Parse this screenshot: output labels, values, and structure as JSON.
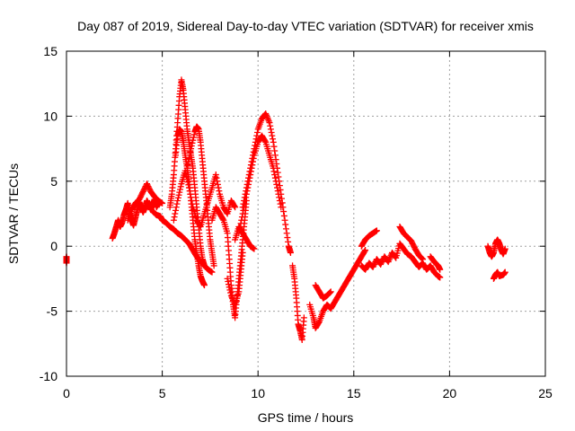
{
  "chart_data": {
    "type": "scatter",
    "title": "Day 087 of 2019, Sidereal Day-to-day VTEC variation (SDTVAR) for receiver xmis",
    "xlabel": "GPS time / hours",
    "ylabel": "SDTVAR / TECUs",
    "xlim": [
      0,
      25
    ],
    "ylim": [
      -10,
      15
    ],
    "xticks": [
      0,
      5,
      10,
      15,
      20,
      25
    ],
    "yticks": [
      -10,
      -5,
      0,
      5,
      10,
      15
    ],
    "xtick_labels": [
      "0",
      "5",
      "10",
      "15",
      "20",
      "25"
    ],
    "ytick_labels": [
      "-10",
      "-5",
      "0",
      "5",
      "10",
      "15"
    ],
    "grid": true,
    "marker": "+",
    "color": "#ff0000",
    "series": [
      {
        "name": "start",
        "points": [
          [
            0.0,
            -0.8
          ],
          [
            0.0,
            -1.0
          ],
          [
            0.0,
            -1.3
          ]
        ]
      },
      {
        "name": "s1",
        "points": [
          [
            2.4,
            0.6
          ],
          [
            2.5,
            1.0
          ],
          [
            2.6,
            1.5
          ],
          [
            2.7,
            2.0
          ],
          [
            2.8,
            1.5
          ],
          [
            2.9,
            1.8
          ],
          [
            3.0,
            2.4
          ],
          [
            3.1,
            2.8
          ],
          [
            3.2,
            3.3
          ],
          [
            3.3,
            2.5
          ],
          [
            3.4,
            2.0
          ],
          [
            3.5,
            1.6
          ],
          [
            3.6,
            2.2
          ],
          [
            3.7,
            2.8
          ],
          [
            3.8,
            3.4
          ],
          [
            3.9,
            3.0
          ],
          [
            4.0,
            2.6
          ],
          [
            4.1,
            3.0
          ],
          [
            4.2,
            3.5
          ],
          [
            4.3,
            3.2
          ],
          [
            4.4,
            2.8
          ],
          [
            4.5,
            3.2
          ],
          [
            4.6,
            3.6
          ],
          [
            4.7,
            3.0
          ],
          [
            4.8,
            3.3
          ]
        ]
      },
      {
        "name": "s1b",
        "points": [
          [
            3.2,
            2.0
          ],
          [
            3.4,
            2.8
          ],
          [
            3.6,
            3.3
          ],
          [
            3.8,
            3.6
          ],
          [
            4.0,
            4.2
          ],
          [
            4.2,
            4.8
          ],
          [
            4.4,
            4.2
          ],
          [
            4.6,
            3.8
          ],
          [
            4.8,
            3.5
          ],
          [
            5.0,
            3.3
          ]
        ]
      },
      {
        "name": "s2",
        "points": [
          [
            4.5,
            2.7
          ],
          [
            4.7,
            2.4
          ],
          [
            4.9,
            2.3
          ],
          [
            5.0,
            2.0
          ],
          [
            5.2,
            1.8
          ],
          [
            5.4,
            1.5
          ],
          [
            5.6,
            1.3
          ],
          [
            5.8,
            1.0
          ],
          [
            6.0,
            0.8
          ],
          [
            6.2,
            0.5
          ],
          [
            6.4,
            0.2
          ],
          [
            6.6,
            -0.3
          ],
          [
            6.8,
            -0.8
          ],
          [
            7.0,
            -1.2
          ],
          [
            7.2,
            -1.5
          ],
          [
            7.4,
            -1.8
          ],
          [
            7.6,
            -2.0
          ]
        ]
      },
      {
        "name": "s3",
        "points": [
          [
            5.4,
            3.0
          ],
          [
            5.5,
            4.0
          ],
          [
            5.6,
            5.5
          ],
          [
            5.7,
            7.5
          ],
          [
            5.8,
            9.5
          ],
          [
            5.9,
            11.5
          ],
          [
            6.0,
            12.8
          ],
          [
            6.1,
            12.0
          ],
          [
            6.2,
            10.5
          ],
          [
            6.3,
            9.0
          ],
          [
            6.4,
            8.0
          ],
          [
            6.5,
            7.0
          ],
          [
            6.6,
            6.0
          ],
          [
            6.7,
            4.5
          ],
          [
            6.8,
            3.0
          ],
          [
            6.9,
            1.5
          ],
          [
            7.0,
            0.0
          ],
          [
            7.1,
            -1.0
          ],
          [
            7.2,
            -1.5
          ]
        ]
      },
      {
        "name": "s3b",
        "points": [
          [
            5.7,
            7.0
          ],
          [
            5.8,
            8.5
          ],
          [
            5.9,
            9.0
          ],
          [
            6.0,
            8.8
          ],
          [
            6.1,
            8.0
          ],
          [
            6.2,
            7.0
          ],
          [
            6.3,
            6.0
          ],
          [
            6.4,
            5.0
          ],
          [
            6.5,
            3.5
          ],
          [
            6.6,
            2.0
          ],
          [
            6.7,
            0.5
          ],
          [
            6.8,
            -0.5
          ],
          [
            6.9,
            -1.5
          ],
          [
            7.0,
            -2.3
          ],
          [
            7.1,
            -2.7
          ],
          [
            7.2,
            -3.0
          ]
        ]
      },
      {
        "name": "s4",
        "points": [
          [
            6.3,
            6.0
          ],
          [
            6.5,
            7.5
          ],
          [
            6.7,
            8.8
          ],
          [
            6.8,
            9.2
          ],
          [
            6.9,
            9.0
          ],
          [
            7.0,
            8.0
          ],
          [
            7.1,
            6.5
          ],
          [
            7.2,
            5.0
          ],
          [
            7.3,
            3.5
          ],
          [
            7.4,
            2.0
          ],
          [
            7.5,
            0.5
          ],
          [
            7.6,
            -0.5
          ],
          [
            7.7,
            -1.5
          ]
        ]
      },
      {
        "name": "s5",
        "points": [
          [
            5.6,
            2.0
          ],
          [
            5.8,
            3.5
          ],
          [
            6.0,
            4.8
          ],
          [
            6.2,
            5.8
          ],
          [
            6.4,
            4.5
          ],
          [
            6.6,
            3.0
          ],
          [
            6.8,
            2.0
          ],
          [
            7.0,
            1.5
          ],
          [
            7.2,
            2.5
          ],
          [
            7.4,
            3.5
          ],
          [
            7.6,
            4.5
          ],
          [
            7.8,
            5.5
          ],
          [
            8.0,
            4.0
          ],
          [
            8.2,
            3.0
          ],
          [
            8.4,
            2.5
          ],
          [
            8.6,
            3.5
          ],
          [
            8.8,
            3.0
          ]
        ]
      },
      {
        "name": "s6",
        "points": [
          [
            7.6,
            2.0
          ],
          [
            7.8,
            3.0
          ],
          [
            8.0,
            2.5
          ],
          [
            8.2,
            2.0
          ],
          [
            8.4,
            1.0
          ],
          [
            8.5,
            -1.0
          ],
          [
            8.6,
            -3.0
          ],
          [
            8.7,
            -4.5
          ],
          [
            8.8,
            -5.5
          ],
          [
            8.9,
            -4.0
          ],
          [
            9.0,
            -2.5
          ],
          [
            9.1,
            -1.0
          ],
          [
            9.2,
            0.5
          ],
          [
            9.3,
            2.0
          ],
          [
            9.4,
            3.5
          ]
        ]
      },
      {
        "name": "s6b",
        "points": [
          [
            8.4,
            -2.5
          ],
          [
            8.6,
            -3.8
          ],
          [
            8.8,
            -4.5
          ],
          [
            9.0,
            -3.5
          ],
          [
            9.1,
            -2.0
          ],
          [
            9.2,
            -0.5
          ]
        ]
      },
      {
        "name": "s7",
        "points": [
          [
            9.2,
            3.0
          ],
          [
            9.4,
            4.5
          ],
          [
            9.6,
            6.0
          ],
          [
            9.8,
            7.5
          ],
          [
            10.0,
            9.0
          ],
          [
            10.2,
            9.8
          ],
          [
            10.4,
            10.2
          ],
          [
            10.6,
            9.5
          ],
          [
            10.8,
            8.0
          ],
          [
            11.0,
            6.0
          ],
          [
            11.2,
            4.0
          ],
          [
            11.4,
            2.0
          ],
          [
            11.6,
            0.0
          ],
          [
            11.7,
            -0.5
          ]
        ]
      },
      {
        "name": "s7b",
        "points": [
          [
            9.0,
            1.0
          ],
          [
            9.2,
            2.5
          ],
          [
            9.4,
            4.0
          ],
          [
            9.6,
            5.5
          ],
          [
            9.8,
            7.0
          ],
          [
            10.0,
            8.0
          ],
          [
            10.2,
            8.5
          ],
          [
            10.4,
            8.0
          ],
          [
            10.6,
            7.0
          ],
          [
            10.8,
            6.0
          ],
          [
            11.0,
            4.5
          ],
          [
            11.2,
            3.0
          ]
        ]
      },
      {
        "name": "s7c",
        "points": [
          [
            8.8,
            0.5
          ],
          [
            9.0,
            1.5
          ],
          [
            9.2,
            1.0
          ],
          [
            9.4,
            0.5
          ],
          [
            9.6,
            0.0
          ],
          [
            9.8,
            -0.2
          ]
        ]
      },
      {
        "name": "s8",
        "points": [
          [
            11.8,
            -1.5
          ],
          [
            11.9,
            -2.5
          ],
          [
            12.0,
            -4.0
          ],
          [
            12.1,
            -6.0
          ],
          [
            12.2,
            -6.5
          ],
          [
            12.3,
            -7.2
          ],
          [
            12.4,
            -5.5
          ]
        ]
      },
      {
        "name": "s9",
        "points": [
          [
            12.7,
            -4.5
          ],
          [
            12.9,
            -5.5
          ],
          [
            13.0,
            -6.3
          ],
          [
            13.2,
            -5.8
          ],
          [
            13.4,
            -5.0
          ],
          [
            13.6,
            -4.5
          ],
          [
            13.8,
            -4.8
          ],
          [
            14.0,
            -4.3
          ],
          [
            14.2,
            -3.8
          ],
          [
            14.4,
            -3.3
          ],
          [
            14.6,
            -2.8
          ],
          [
            14.8,
            -2.3
          ],
          [
            15.0,
            -1.8
          ],
          [
            15.2,
            -1.3
          ],
          [
            15.4,
            -0.8
          ],
          [
            15.6,
            -0.3
          ]
        ]
      },
      {
        "name": "s9b",
        "points": [
          [
            13.0,
            -3.0
          ],
          [
            13.2,
            -3.5
          ],
          [
            13.4,
            -4.0
          ],
          [
            13.6,
            -3.8
          ],
          [
            13.8,
            -3.5
          ]
        ]
      },
      {
        "name": "s10",
        "points": [
          [
            15.4,
            0.0
          ],
          [
            15.6,
            0.5
          ],
          [
            15.8,
            0.8
          ],
          [
            16.0,
            1.0
          ],
          [
            16.2,
            1.2
          ]
        ]
      },
      {
        "name": "s11",
        "points": [
          [
            15.4,
            -1.5
          ],
          [
            15.6,
            -1.8
          ],
          [
            15.8,
            -1.3
          ],
          [
            16.0,
            -1.6
          ],
          [
            16.2,
            -1.0
          ],
          [
            16.4,
            -1.4
          ],
          [
            16.6,
            -0.8
          ],
          [
            16.8,
            -1.2
          ],
          [
            17.0,
            -0.5
          ],
          [
            17.2,
            -0.9
          ],
          [
            17.4,
            0.2
          ],
          [
            17.6,
            -0.2
          ],
          [
            17.8,
            -0.6
          ],
          [
            18.0,
            -0.8
          ],
          [
            18.2,
            -1.2
          ],
          [
            18.4,
            -1.6
          ],
          [
            18.6,
            -1.3
          ],
          [
            18.8,
            -1.8
          ],
          [
            19.0,
            -1.5
          ],
          [
            19.2,
            -2.0
          ],
          [
            19.4,
            -2.3
          ],
          [
            19.5,
            -2.4
          ]
        ]
      },
      {
        "name": "s12",
        "points": [
          [
            17.4,
            1.5
          ],
          [
            17.6,
            1.0
          ],
          [
            17.8,
            0.7
          ],
          [
            18.0,
            0.4
          ],
          [
            18.2,
            -0.2
          ],
          [
            18.4,
            -0.7
          ],
          [
            18.6,
            -1.0
          ]
        ]
      },
      {
        "name": "s13",
        "points": [
          [
            19.0,
            -0.8
          ],
          [
            19.2,
            -1.2
          ],
          [
            19.4,
            -1.5
          ],
          [
            19.5,
            -1.8
          ]
        ]
      },
      {
        "name": "s14",
        "points": [
          [
            22.0,
            0.0
          ],
          [
            22.1,
            -0.5
          ],
          [
            22.2,
            -0.8
          ],
          [
            22.3,
            -0.5
          ],
          [
            22.4,
            0.2
          ],
          [
            22.5,
            0.5
          ],
          [
            22.6,
            0.2
          ],
          [
            22.7,
            -0.3
          ],
          [
            22.8,
            -0.6
          ],
          [
            22.9,
            -0.2
          ]
        ]
      },
      {
        "name": "s15",
        "points": [
          [
            22.3,
            -2.5
          ],
          [
            22.4,
            -2.2
          ],
          [
            22.5,
            -2.0
          ],
          [
            22.6,
            -2.3
          ],
          [
            22.8,
            -2.2
          ],
          [
            22.9,
            -2.0
          ]
        ]
      }
    ]
  }
}
